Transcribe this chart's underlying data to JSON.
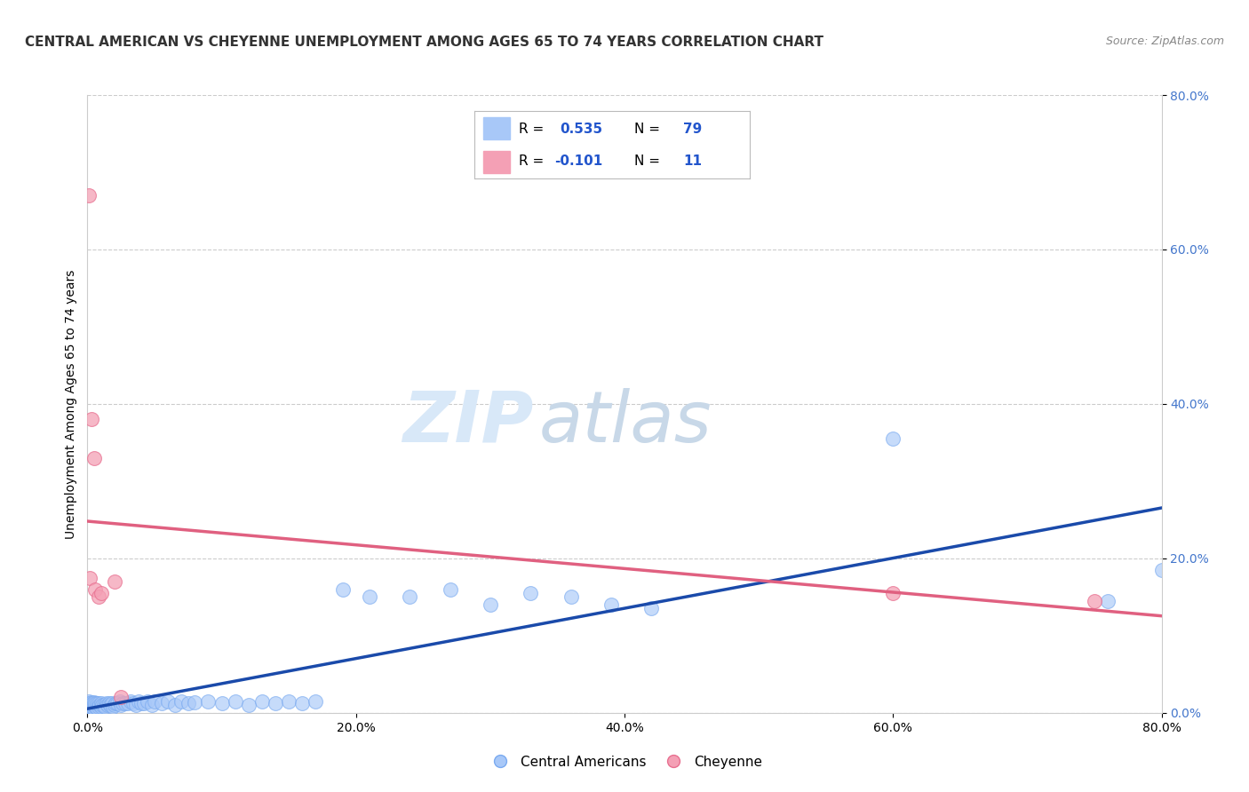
{
  "title": "CENTRAL AMERICAN VS CHEYENNE UNEMPLOYMENT AMONG AGES 65 TO 74 YEARS CORRELATION CHART",
  "source": "Source: ZipAtlas.com",
  "ylabel": "Unemployment Among Ages 65 to 74 years",
  "xlim": [
    0.0,
    0.8
  ],
  "ylim": [
    0.0,
    0.8
  ],
  "xticks": [
    0.0,
    0.2,
    0.4,
    0.6,
    0.8
  ],
  "yticks": [
    0.0,
    0.2,
    0.4,
    0.6,
    0.8
  ],
  "grid_color": "#cccccc",
  "background_color": "#ffffff",
  "watermark_zip": "ZIP",
  "watermark_atlas": "atlas",
  "central_americans": {
    "x": [
      0.001,
      0.001,
      0.001,
      0.001,
      0.001,
      0.002,
      0.002,
      0.002,
      0.002,
      0.003,
      0.003,
      0.003,
      0.004,
      0.004,
      0.005,
      0.005,
      0.005,
      0.006,
      0.006,
      0.007,
      0.007,
      0.008,
      0.008,
      0.009,
      0.01,
      0.01,
      0.011,
      0.012,
      0.013,
      0.014,
      0.015,
      0.016,
      0.017,
      0.018,
      0.019,
      0.02,
      0.021,
      0.022,
      0.024,
      0.025,
      0.026,
      0.028,
      0.03,
      0.032,
      0.034,
      0.036,
      0.038,
      0.04,
      0.042,
      0.045,
      0.048,
      0.05,
      0.055,
      0.06,
      0.065,
      0.07,
      0.075,
      0.08,
      0.09,
      0.1,
      0.11,
      0.12,
      0.13,
      0.14,
      0.15,
      0.16,
      0.17,
      0.19,
      0.21,
      0.24,
      0.27,
      0.3,
      0.33,
      0.36,
      0.39,
      0.42,
      0.6,
      0.76,
      0.8
    ],
    "y": [
      0.005,
      0.008,
      0.01,
      0.012,
      0.015,
      0.005,
      0.008,
      0.01,
      0.012,
      0.008,
      0.01,
      0.013,
      0.008,
      0.012,
      0.005,
      0.01,
      0.013,
      0.008,
      0.012,
      0.007,
      0.012,
      0.008,
      0.012,
      0.01,
      0.008,
      0.012,
      0.01,
      0.01,
      0.008,
      0.012,
      0.01,
      0.012,
      0.01,
      0.012,
      0.008,
      0.01,
      0.012,
      0.012,
      0.015,
      0.01,
      0.012,
      0.012,
      0.012,
      0.015,
      0.012,
      0.01,
      0.015,
      0.012,
      0.012,
      0.015,
      0.01,
      0.015,
      0.012,
      0.015,
      0.01,
      0.015,
      0.012,
      0.013,
      0.015,
      0.012,
      0.015,
      0.01,
      0.015,
      0.012,
      0.015,
      0.012,
      0.015,
      0.16,
      0.15,
      0.15,
      0.16,
      0.14,
      0.155,
      0.15,
      0.14,
      0.135,
      0.355,
      0.145,
      0.185
    ],
    "marker_color": "#a8c8f8",
    "edge_color": "#7aaaf0",
    "line_color": "#1a4aaa",
    "R": 0.535,
    "N": 79
  },
  "cheyenne": {
    "x": [
      0.001,
      0.002,
      0.003,
      0.005,
      0.006,
      0.008,
      0.01,
      0.02,
      0.025,
      0.6,
      0.75
    ],
    "y": [
      0.67,
      0.175,
      0.38,
      0.33,
      0.16,
      0.15,
      0.155,
      0.17,
      0.02,
      0.155,
      0.145
    ],
    "marker_color": "#f4a0b5",
    "edge_color": "#e87090",
    "line_color": "#e06080",
    "R": -0.101,
    "N": 11
  },
  "legend_blue_label": "Central Americans",
  "legend_pink_label": "Cheyenne",
  "title_fontsize": 11,
  "axis_fontsize": 10,
  "tick_fontsize": 10,
  "source_fontsize": 9
}
